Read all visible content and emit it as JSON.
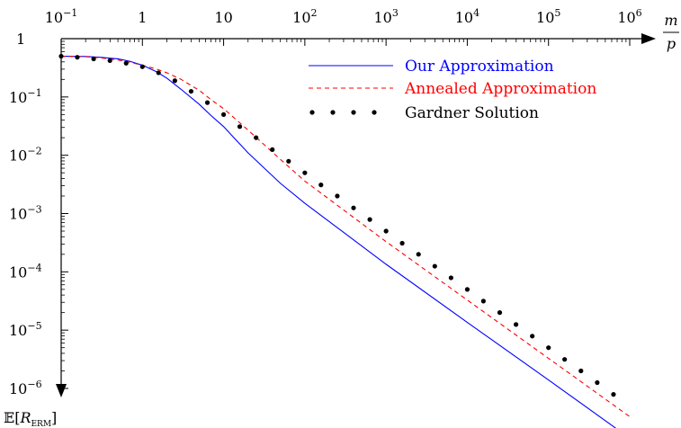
{
  "chart_data": {
    "type": "line",
    "x_scale": "log",
    "y_scale": "log",
    "xlim": [
      0.1,
      1000000
    ],
    "ylim": [
      1e-06,
      1
    ],
    "x_ticks": [
      {
        "value": 0.1,
        "base": "10",
        "exp": "−1"
      },
      {
        "value": 1,
        "base": "1",
        "exp": ""
      },
      {
        "value": 10,
        "base": "10",
        "exp": ""
      },
      {
        "value": 100,
        "base": "10",
        "exp": "2"
      },
      {
        "value": 1000,
        "base": "10",
        "exp": "3"
      },
      {
        "value": 10000,
        "base": "10",
        "exp": "4"
      },
      {
        "value": 100000,
        "base": "10",
        "exp": "5"
      },
      {
        "value": 1000000,
        "base": "10",
        "exp": "6"
      }
    ],
    "y_ticks": [
      {
        "value": 1,
        "base": "1",
        "exp": ""
      },
      {
        "value": 0.1,
        "base": "10",
        "exp": "−1"
      },
      {
        "value": 0.01,
        "base": "10",
        "exp": "−2"
      },
      {
        "value": 0.001,
        "base": "10",
        "exp": "−3"
      },
      {
        "value": 0.0001,
        "base": "10",
        "exp": "−4"
      },
      {
        "value": 1e-05,
        "base": "10",
        "exp": "−5"
      },
      {
        "value": 1e-06,
        "base": "10",
        "exp": "−6"
      }
    ],
    "xlabel": {
      "numerator": "m",
      "denominator": "p"
    },
    "ylabel": {
      "prefix": "𝔼[",
      "symbol": "R",
      "subscript": "ERM",
      "suffix": "]"
    },
    "legend_position": "top-right",
    "series": [
      {
        "name": "Our Approximation",
        "style": "solid",
        "color": "#0000ff",
        "x": [
          0.1,
          0.2,
          0.3,
          0.5,
          0.7,
          1,
          1.5,
          2,
          3,
          5,
          7,
          10,
          20,
          50,
          100,
          1000,
          10000,
          100000,
          1000000
        ],
        "y": [
          0.5,
          0.495,
          0.48,
          0.45,
          0.41,
          0.35,
          0.27,
          0.21,
          0.135,
          0.075,
          0.048,
          0.031,
          0.011,
          0.0033,
          0.0015,
          0.000135,
          1.36e-05,
          1.4e-06,
          1.4e-07
        ]
      },
      {
        "name": "Annealed Approximation",
        "style": "dashed",
        "color": "#ff0000",
        "x": [
          0.1,
          0.2,
          0.3,
          0.5,
          0.7,
          1,
          1.5,
          2,
          3,
          5,
          7,
          10,
          20,
          50,
          100,
          1000,
          10000,
          100000,
          1000000
        ],
        "y": [
          0.5,
          0.49,
          0.47,
          0.43,
          0.395,
          0.35,
          0.3,
          0.26,
          0.2,
          0.13,
          0.09,
          0.063,
          0.027,
          0.0085,
          0.0036,
          0.00033,
          3.28e-05,
          3.28e-06,
          3.28e-07
        ]
      },
      {
        "name": "Gardner Solution",
        "style": "dotted",
        "color": "#000000",
        "x": [
          0.1,
          0.158,
          0.251,
          0.398,
          0.631,
          1,
          1.58,
          2.51,
          3.98,
          6.31,
          10,
          15.8,
          25.1,
          39.8,
          63.1,
          100,
          158,
          251,
          398,
          631,
          1000,
          1580,
          2510,
          3980,
          6310,
          10000,
          15800,
          25100,
          39800,
          63100,
          100000,
          158000,
          251000,
          398000,
          631000
        ],
        "y": [
          0.5,
          0.48,
          0.45,
          0.42,
          0.38,
          0.33,
          0.26,
          0.19,
          0.125,
          0.08,
          0.05,
          0.031,
          0.02,
          0.0125,
          0.0079,
          0.005,
          0.0031,
          0.002,
          0.00125,
          0.00079,
          0.0005,
          0.00031,
          0.0002,
          0.000125,
          7.9e-05,
          5e-05,
          3.15e-05,
          2e-05,
          1.25e-05,
          7.9e-06,
          5e-06,
          3.15e-06,
          2e-06,
          1.26e-06,
          7.9e-07
        ]
      }
    ]
  }
}
